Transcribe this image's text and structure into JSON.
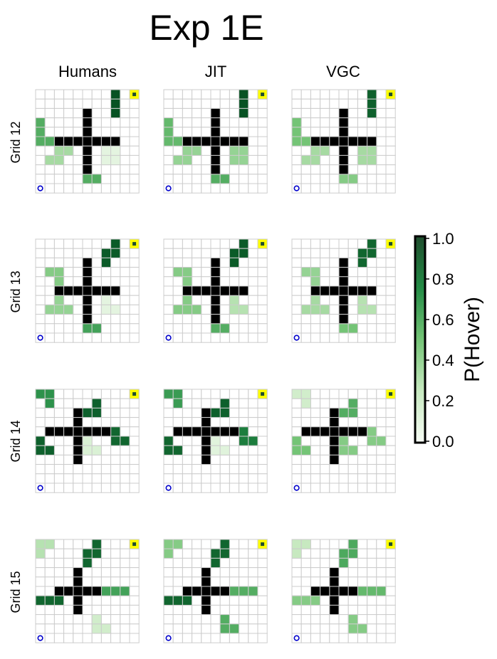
{
  "figure": {
    "title": "Exp 1E",
    "column_titles": [
      "Humans",
      "JIT",
      "VGC"
    ],
    "row_titles": [
      "Grid 12",
      "Grid 13",
      "Grid 14",
      "Grid 15"
    ]
  },
  "colors": {
    "wall": "#000000",
    "grid_line": "#cccccc",
    "goal": "#ffff00",
    "goal_marker": "#1f4d2e",
    "start_marker": "#0000cc",
    "colormap": [
      "#f7fcf5",
      "#c7e9c0",
      "#74c476",
      "#238b45",
      "#00441b"
    ]
  },
  "colorbar": {
    "label": "P(Hover)",
    "ticks": [
      "0.0",
      "0.2",
      "0.4",
      "0.6",
      "0.8",
      "1.0"
    ],
    "range": [
      0,
      1
    ]
  },
  "chart_data": {
    "type": "heatmap",
    "grid_size": 11,
    "layout": "rows = grids, columns = model/participants",
    "rows": [
      {
        "grid": "Grid 12",
        "start": [
          0,
          10
        ],
        "goal": [
          10,
          0
        ],
        "walls": [
          [
            5,
            2
          ],
          [
            5,
            3
          ],
          [
            5,
            4
          ],
          [
            5,
            5
          ],
          [
            5,
            6
          ],
          [
            5,
            7
          ],
          [
            5,
            8
          ],
          [
            2,
            5
          ],
          [
            3,
            5
          ],
          [
            4,
            5
          ],
          [
            6,
            5
          ],
          [
            7,
            5
          ],
          [
            8,
            5
          ]
        ],
        "obstacles": [
          {
            "cells": [
              [
                8,
                0
              ],
              [
                8,
                1
              ],
              [
                8,
                2
              ]
            ],
            "p": [
              0.95,
              0.95,
              0.9
            ]
          },
          {
            "cells": [
              [
                0,
                3
              ],
              [
                0,
                4
              ],
              [
                0,
                5
              ],
              [
                1,
                5
              ]
            ],
            "p": [
              0.6,
              0.55,
              0.5
            ]
          },
          {
            "cells": [
              [
                2,
                6
              ],
              [
                3,
                6
              ],
              [
                1,
                7
              ],
              [
                2,
                7
              ]
            ],
            "p": [
              0.35,
              0.4,
              0.35
            ]
          },
          {
            "cells": [
              [
                7,
                6
              ],
              [
                8,
                6
              ],
              [
                7,
                7
              ],
              [
                8,
                7
              ]
            ],
            "p": [
              0.1,
              0.4,
              0.35
            ]
          },
          {
            "cells": [
              [
                5,
                8
              ],
              [
                5,
                9
              ],
              [
                6,
                9
              ]
            ],
            "p": [
              0.6,
              0.6,
              0.45
            ]
          }
        ]
      },
      {
        "grid": "Grid 13",
        "start": [
          0,
          10
        ],
        "goal": [
          10,
          0
        ],
        "walls": [
          [
            5,
            2
          ],
          [
            5,
            3
          ],
          [
            5,
            4
          ],
          [
            5,
            5
          ],
          [
            5,
            6
          ],
          [
            5,
            7
          ],
          [
            5,
            8
          ],
          [
            2,
            5
          ],
          [
            3,
            5
          ],
          [
            4,
            5
          ],
          [
            6,
            5
          ],
          [
            7,
            5
          ],
          [
            8,
            5
          ]
        ],
        "obstacles": [
          {
            "cells": [
              [
                8,
                0
              ],
              [
                8,
                1
              ],
              [
                7,
                1
              ],
              [
                7,
                2
              ]
            ],
            "p": [
              0.92,
              0.92,
              0.88
            ]
          },
          {
            "cells": [
              [
                1,
                3
              ],
              [
                2,
                3
              ],
              [
                2,
                4
              ]
            ],
            "p": [
              0.45,
              0.45,
              0.4
            ]
          },
          {
            "cells": [
              [
                2,
                6
              ],
              [
                1,
                7
              ],
              [
                2,
                7
              ],
              [
                3,
                7
              ]
            ],
            "p": [
              0.4,
              0.45,
              0.35
            ]
          },
          {
            "cells": [
              [
                7,
                6
              ],
              [
                7,
                7
              ],
              [
                8,
                7
              ]
            ],
            "p": [
              0.1,
              0.3,
              0.3
            ]
          },
          {
            "cells": [
              [
                5,
                8
              ],
              [
                5,
                9
              ],
              [
                6,
                9
              ]
            ],
            "p": [
              0.65,
              0.6,
              0.5
            ]
          }
        ]
      },
      {
        "grid": "Grid 14",
        "start": [
          0,
          10
        ],
        "goal": [
          10,
          0
        ],
        "walls": [
          [
            4,
            2
          ],
          [
            4,
            3
          ],
          [
            4,
            4
          ],
          [
            4,
            5
          ],
          [
            4,
            6
          ],
          [
            4,
            7
          ],
          [
            1,
            4
          ],
          [
            2,
            4
          ],
          [
            3,
            4
          ],
          [
            5,
            4
          ],
          [
            6,
            4
          ],
          [
            7,
            4
          ]
        ],
        "obstacles": [
          {
            "cells": [
              [
                0,
                0
              ],
              [
                1,
                0
              ],
              [
                1,
                1
              ]
            ],
            "p": [
              0.72,
              0.68,
              0.2
            ]
          },
          {
            "cells": [
              [
                6,
                1
              ],
              [
                6,
                2
              ],
              [
                5,
                2
              ]
            ],
            "p": [
              0.9,
              0.9,
              0.6
            ]
          },
          {
            "cells": [
              [
                0,
                5
              ],
              [
                0,
                6
              ],
              [
                1,
                6
              ]
            ],
            "p": [
              0.9,
              0.88,
              0.5
            ]
          },
          {
            "cells": [
              [
                8,
                4
              ],
              [
                8,
                5
              ],
              [
                9,
                5
              ]
            ],
            "p": [
              0.88,
              0.8,
              0.45
            ]
          },
          {
            "cells": [
              [
                5,
                5
              ],
              [
                5,
                6
              ],
              [
                6,
                6
              ]
            ],
            "p": [
              0.15,
              0.12,
              0.45
            ]
          }
        ]
      },
      {
        "grid": "Grid 15",
        "start": [
          0,
          10
        ],
        "goal": [
          10,
          0
        ],
        "walls": [
          [
            4,
            3
          ],
          [
            4,
            4
          ],
          [
            4,
            5
          ],
          [
            4,
            6
          ],
          [
            4,
            7
          ],
          [
            2,
            5
          ],
          [
            3,
            5
          ],
          [
            5,
            5
          ],
          [
            6,
            5
          ]
        ],
        "obstacles": [
          {
            "cells": [
              [
                0,
                0
              ],
              [
                1,
                0
              ],
              [
                0,
                1
              ]
            ],
            "p": [
              0.3,
              0.45,
              0.25
            ]
          },
          {
            "cells": [
              [
                6,
                0
              ],
              [
                6,
                1
              ],
              [
                5,
                1
              ],
              [
                5,
                2
              ]
            ],
            "p": [
              0.88,
              0.88,
              0.62
            ]
          },
          {
            "cells": [
              [
                0,
                6
              ],
              [
                1,
                6
              ],
              [
                2,
                6
              ]
            ],
            "p": [
              0.88,
              0.88,
              0.45
            ]
          },
          {
            "cells": [
              [
                7,
                5
              ],
              [
                8,
                5
              ],
              [
                9,
                5
              ]
            ],
            "p": [
              0.65,
              0.6,
              0.55
            ]
          },
          {
            "cells": [
              [
                6,
                8
              ],
              [
                6,
                9
              ],
              [
                7,
                9
              ]
            ],
            "p": [
              0.2,
              0.6,
              0.45
            ]
          }
        ]
      }
    ]
  }
}
